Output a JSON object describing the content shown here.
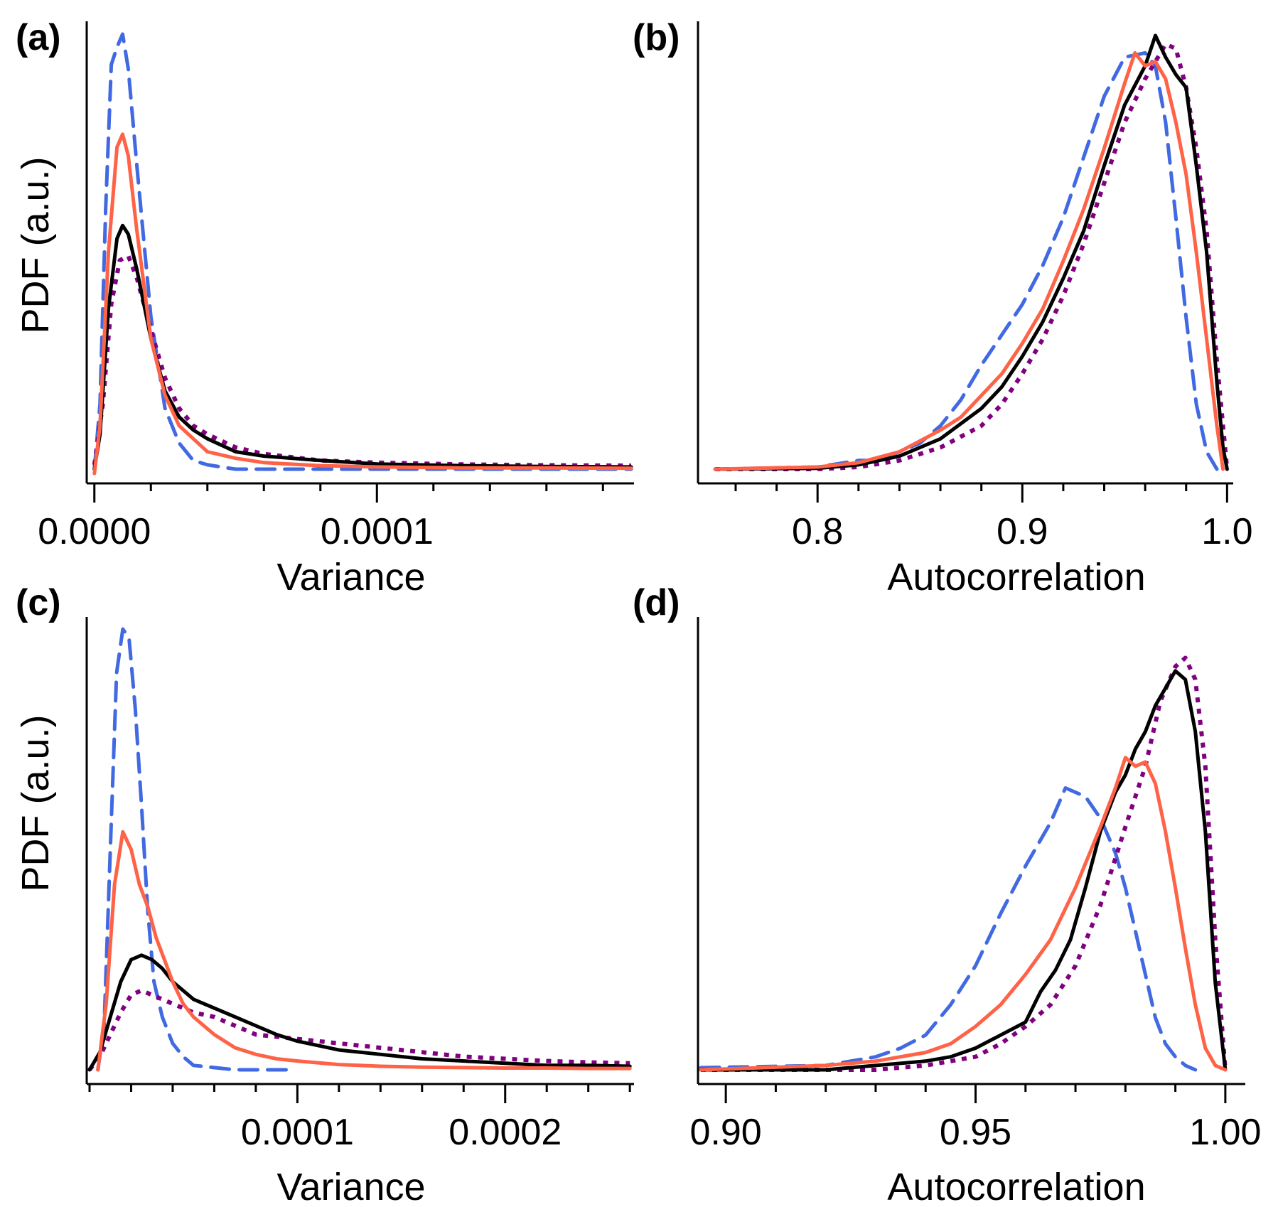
{
  "figure": {
    "panels": [
      "(a)",
      "(b)",
      "(c)",
      "(d)"
    ]
  },
  "series_styles": [
    {
      "name": "black-solid",
      "color": "#000000",
      "dash": "solid"
    },
    {
      "name": "blue-dashed",
      "color": "#4169E1",
      "dash": "dashed"
    },
    {
      "name": "red-solid",
      "color": "#FF6347",
      "dash": "solid"
    },
    {
      "name": "purple-dotted",
      "color": "#800080",
      "dash": "dotted"
    }
  ],
  "chart_data": [
    {
      "type": "line",
      "panel": "(a)",
      "xlabel": "Variance",
      "ylabel": "PDF (a.u.)",
      "xlim": [
        -1.7e-06,
        0.000191
      ],
      "ylim": [
        -0.03,
        1.0
      ],
      "xticks_major": [
        0.0,
        0.0001
      ],
      "xtick_labels": [
        "0.0000",
        "0.0001"
      ],
      "xticks_minor_step": 2e-05,
      "grid": false,
      "series": [
        {
          "name": "black-solid",
          "x": [
            0.0,
            2e-06,
            5e-06,
            8e-06,
            1e-05,
            1.2e-05,
            1.5e-05,
            2e-05,
            2.5e-05,
            3e-05,
            3.5e-05,
            4e-05,
            5e-05,
            6e-05,
            8e-05,
            0.0001,
            0.00013,
            0.00016,
            0.00019
          ],
          "y": [
            0.0,
            0.08,
            0.37,
            0.53,
            0.56,
            0.54,
            0.46,
            0.3,
            0.18,
            0.12,
            0.09,
            0.07,
            0.04,
            0.03,
            0.02,
            0.012,
            0.008,
            0.006,
            0.005
          ]
        },
        {
          "name": "blue-dashed",
          "x": [
            0.0,
            2e-06,
            4e-06,
            6e-06,
            8e-06,
            1e-05,
            1.2e-05,
            1.5e-05,
            2e-05,
            2.5e-05,
            3e-05,
            3.5e-05,
            4e-05,
            5e-05,
            6e-05,
            0.0001,
            0.00019
          ],
          "y": [
            0.0,
            0.15,
            0.6,
            0.93,
            0.97,
            1.0,
            0.92,
            0.7,
            0.35,
            0.14,
            0.06,
            0.02,
            0.01,
            0.0,
            0.0,
            0.0,
            0.0
          ]
        },
        {
          "name": "red-solid",
          "x": [
            0.0,
            2e-06,
            5e-06,
            8e-06,
            1e-05,
            1.2e-05,
            1.5e-05,
            2e-05,
            2.5e-05,
            3e-05,
            3.5e-05,
            4e-05,
            5e-05,
            6e-05,
            8e-05,
            0.0001,
            0.00013,
            0.00016,
            0.00019
          ],
          "y": [
            -0.01,
            0.1,
            0.5,
            0.74,
            0.77,
            0.72,
            0.55,
            0.3,
            0.17,
            0.1,
            0.07,
            0.04,
            0.025,
            0.015,
            0.008,
            0.005,
            0.003,
            0.003,
            0.002
          ]
        },
        {
          "name": "purple-dotted",
          "x": [
            0.0,
            3e-06,
            6e-06,
            9e-06,
            1.2e-05,
            1.5e-05,
            2e-05,
            2.5e-05,
            3e-05,
            3.5e-05,
            4e-05,
            5e-05,
            6e-05,
            8e-05,
            0.0001,
            0.00013,
            0.00016,
            0.00019
          ],
          "y": [
            0.01,
            0.15,
            0.38,
            0.48,
            0.49,
            0.44,
            0.32,
            0.21,
            0.14,
            0.1,
            0.08,
            0.05,
            0.035,
            0.02,
            0.015,
            0.011,
            0.009,
            0.008
          ]
        }
      ]
    },
    {
      "type": "line",
      "panel": "(b)",
      "xlabel": "Autocorrelation",
      "ylabel": "",
      "xlim": [
        0.743,
        1.003
      ],
      "ylim": [
        -0.03,
        1.0
      ],
      "xticks_major": [
        0.8,
        0.9,
        1.0
      ],
      "xtick_labels": [
        "0.8",
        "0.9",
        "1.0"
      ],
      "xticks_minor_step": 0.02,
      "grid": false,
      "series": [
        {
          "name": "black-solid",
          "x": [
            0.75,
            0.8,
            0.82,
            0.84,
            0.86,
            0.88,
            0.89,
            0.9,
            0.91,
            0.92,
            0.93,
            0.94,
            0.95,
            0.96,
            0.965,
            0.97,
            0.975,
            0.98,
            0.985,
            0.99,
            0.995,
            0.998,
            1.0
          ],
          "y": [
            0.0,
            0.002,
            0.01,
            0.03,
            0.07,
            0.14,
            0.19,
            0.26,
            0.34,
            0.44,
            0.55,
            0.7,
            0.84,
            0.93,
            1.0,
            0.95,
            0.91,
            0.88,
            0.7,
            0.5,
            0.2,
            0.05,
            0.0
          ]
        },
        {
          "name": "blue-dashed",
          "x": [
            0.75,
            0.8,
            0.82,
            0.83,
            0.84,
            0.85,
            0.86,
            0.87,
            0.88,
            0.89,
            0.9,
            0.91,
            0.92,
            0.93,
            0.94,
            0.95,
            0.96,
            0.965,
            0.97,
            0.975,
            0.98,
            0.985,
            0.99,
            0.995
          ],
          "y": [
            0.0,
            0.005,
            0.02,
            0.02,
            0.04,
            0.06,
            0.1,
            0.16,
            0.24,
            0.31,
            0.38,
            0.47,
            0.58,
            0.72,
            0.86,
            0.95,
            0.96,
            0.93,
            0.8,
            0.58,
            0.35,
            0.15,
            0.04,
            0.0
          ]
        },
        {
          "name": "red-solid",
          "x": [
            0.75,
            0.8,
            0.82,
            0.84,
            0.86,
            0.87,
            0.88,
            0.89,
            0.9,
            0.91,
            0.92,
            0.93,
            0.94,
            0.95,
            0.955,
            0.96,
            0.965,
            0.97,
            0.975,
            0.98,
            0.985,
            0.99,
            0.995,
            0.998
          ],
          "y": [
            0.0,
            0.005,
            0.015,
            0.04,
            0.09,
            0.12,
            0.17,
            0.22,
            0.29,
            0.37,
            0.48,
            0.6,
            0.74,
            0.89,
            0.96,
            0.93,
            0.94,
            0.9,
            0.8,
            0.68,
            0.5,
            0.3,
            0.1,
            0.0
          ]
        },
        {
          "name": "purple-dotted",
          "x": [
            0.75,
            0.8,
            0.82,
            0.84,
            0.86,
            0.88,
            0.89,
            0.9,
            0.91,
            0.92,
            0.93,
            0.94,
            0.95,
            0.96,
            0.965,
            0.97,
            0.975,
            0.98,
            0.985,
            0.99,
            0.995,
            1.0
          ],
          "y": [
            0.0,
            0.0,
            0.005,
            0.02,
            0.05,
            0.1,
            0.15,
            0.22,
            0.3,
            0.4,
            0.52,
            0.66,
            0.8,
            0.9,
            0.94,
            0.98,
            0.97,
            0.88,
            0.74,
            0.55,
            0.25,
            0.0
          ]
        }
      ]
    },
    {
      "type": "line",
      "panel": "(c)",
      "xlabel": "Variance",
      "ylabel": "PDF (a.u.)",
      "xlim": [
        0.0,
        0.000262
      ],
      "ylim": [
        -0.03,
        1.0
      ],
      "xticks_major": [
        0.0001,
        0.0002
      ],
      "xtick_labels": [
        "0.0001",
        "0.0002"
      ],
      "xticks_minor_step": 2e-05,
      "grid": false,
      "series": [
        {
          "name": "black-solid",
          "x": [
            0.0,
            5e-06,
            1e-05,
            1.5e-05,
            2e-05,
            2.5e-05,
            3e-05,
            3.5e-05,
            4e-05,
            5e-05,
            6e-05,
            7e-05,
            8e-05,
            9e-05,
            0.0001,
            0.00012,
            0.00014,
            0.00016,
            0.00018,
            0.0002,
            0.00022,
            0.00024,
            0.00026
          ],
          "y": [
            0.0,
            0.04,
            0.12,
            0.2,
            0.25,
            0.26,
            0.25,
            0.23,
            0.2,
            0.16,
            0.14,
            0.12,
            0.1,
            0.08,
            0.065,
            0.045,
            0.035,
            0.025,
            0.02,
            0.015,
            0.01,
            0.01,
            0.008
          ]
        },
        {
          "name": "blue-dashed",
          "x": [
            4e-06,
            7e-06,
            1e-05,
            1.3e-05,
            1.6e-05,
            1.9e-05,
            2.2e-05,
            2.5e-05,
            2.8e-05,
            3.1e-05,
            3.5e-05,
            4e-05,
            4.5e-05,
            5e-05,
            6e-05,
            7e-05,
            8e-05,
            9e-05,
            9.5e-05
          ],
          "y": [
            0.0,
            0.1,
            0.5,
            0.9,
            1.0,
            0.98,
            0.82,
            0.6,
            0.36,
            0.2,
            0.12,
            0.06,
            0.03,
            0.01,
            0.005,
            0.0,
            0.0,
            0.0,
            0.0
          ]
        },
        {
          "name": "red-solid",
          "x": [
            4e-06,
            8e-06,
            1.2e-05,
            1.6e-05,
            2e-05,
            2.4e-05,
            2.8e-05,
            3.2e-05,
            3.6e-05,
            4e-05,
            4.5e-05,
            5e-05,
            6e-05,
            7e-05,
            8e-05,
            9e-05,
            0.0001,
            0.00012,
            0.00014,
            0.00016,
            0.00018,
            0.0002,
            0.00022,
            0.00024,
            0.00026
          ],
          "y": [
            0.0,
            0.15,
            0.42,
            0.54,
            0.5,
            0.42,
            0.37,
            0.3,
            0.25,
            0.2,
            0.15,
            0.12,
            0.08,
            0.05,
            0.035,
            0.025,
            0.02,
            0.012,
            0.008,
            0.006,
            0.005,
            0.004,
            0.004,
            0.003,
            0.003
          ]
        },
        {
          "name": "purple-dotted",
          "x": [
            0.0,
            5e-06,
            1e-05,
            1.5e-05,
            2e-05,
            2.5e-05,
            3e-05,
            3.5e-05,
            4e-05,
            5e-05,
            6e-05,
            7e-05,
            8e-05,
            9e-05,
            0.0001,
            0.00012,
            0.00014,
            0.00016,
            0.00018,
            0.0002,
            0.00022,
            0.00024,
            0.00026
          ],
          "y": [
            0.0,
            0.03,
            0.08,
            0.13,
            0.17,
            0.18,
            0.17,
            0.16,
            0.15,
            0.13,
            0.12,
            0.1,
            0.08,
            0.075,
            0.07,
            0.06,
            0.05,
            0.04,
            0.03,
            0.025,
            0.02,
            0.017,
            0.015
          ]
        }
      ]
    },
    {
      "type": "line",
      "panel": "(d)",
      "xlabel": "Autocorrelation",
      "ylabel": "",
      "xlim": [
        0.895,
        1.004
      ],
      "ylim": [
        -0.03,
        1.0
      ],
      "xticks_major": [
        0.9,
        0.95,
        1.0
      ],
      "xtick_labels": [
        "0.90",
        "0.95",
        "1.00"
      ],
      "xticks_minor_step": 0.01,
      "grid": false,
      "series": [
        {
          "name": "black-solid",
          "x": [
            0.895,
            0.92,
            0.93,
            0.94,
            0.945,
            0.95,
            0.955,
            0.96,
            0.963,
            0.966,
            0.969,
            0.972,
            0.975,
            0.978,
            0.98,
            0.982,
            0.984,
            0.986,
            0.988,
            0.99,
            0.992,
            0.994,
            0.996,
            0.998,
            1.0
          ],
          "y": [
            0.0,
            0.0,
            0.01,
            0.02,
            0.03,
            0.05,
            0.08,
            0.11,
            0.18,
            0.23,
            0.3,
            0.42,
            0.55,
            0.64,
            0.68,
            0.74,
            0.78,
            0.84,
            0.88,
            0.92,
            0.9,
            0.78,
            0.55,
            0.2,
            0.0
          ]
        },
        {
          "name": "blue-dashed",
          "x": [
            0.895,
            0.92,
            0.93,
            0.935,
            0.94,
            0.945,
            0.95,
            0.955,
            0.96,
            0.965,
            0.968,
            0.972,
            0.975,
            0.978,
            0.98,
            0.982,
            0.984,
            0.986,
            0.988,
            0.99,
            0.992,
            0.994
          ],
          "y": [
            0.005,
            0.01,
            0.03,
            0.05,
            0.08,
            0.15,
            0.24,
            0.36,
            0.47,
            0.57,
            0.65,
            0.63,
            0.58,
            0.5,
            0.42,
            0.32,
            0.22,
            0.12,
            0.06,
            0.03,
            0.01,
            0.0
          ]
        },
        {
          "name": "red-solid",
          "x": [
            0.895,
            0.92,
            0.93,
            0.94,
            0.945,
            0.95,
            0.955,
            0.96,
            0.965,
            0.97,
            0.975,
            0.978,
            0.98,
            0.982,
            0.984,
            0.986,
            0.988,
            0.99,
            0.992,
            0.994,
            0.996,
            0.998,
            1.0
          ],
          "y": [
            0.0,
            0.01,
            0.02,
            0.04,
            0.06,
            0.1,
            0.15,
            0.22,
            0.3,
            0.42,
            0.56,
            0.65,
            0.72,
            0.7,
            0.71,
            0.66,
            0.55,
            0.42,
            0.28,
            0.15,
            0.05,
            0.01,
            0.0
          ]
        },
        {
          "name": "purple-dotted",
          "x": [
            0.895,
            0.93,
            0.94,
            0.95,
            0.955,
            0.96,
            0.965,
            0.97,
            0.975,
            0.98,
            0.984,
            0.987,
            0.99,
            0.992,
            0.994,
            0.996,
            0.998,
            1.0
          ],
          "y": [
            0.0,
            0.0,
            0.01,
            0.03,
            0.06,
            0.1,
            0.15,
            0.24,
            0.38,
            0.56,
            0.7,
            0.85,
            0.93,
            0.95,
            0.9,
            0.7,
            0.3,
            0.0
          ]
        }
      ]
    }
  ]
}
